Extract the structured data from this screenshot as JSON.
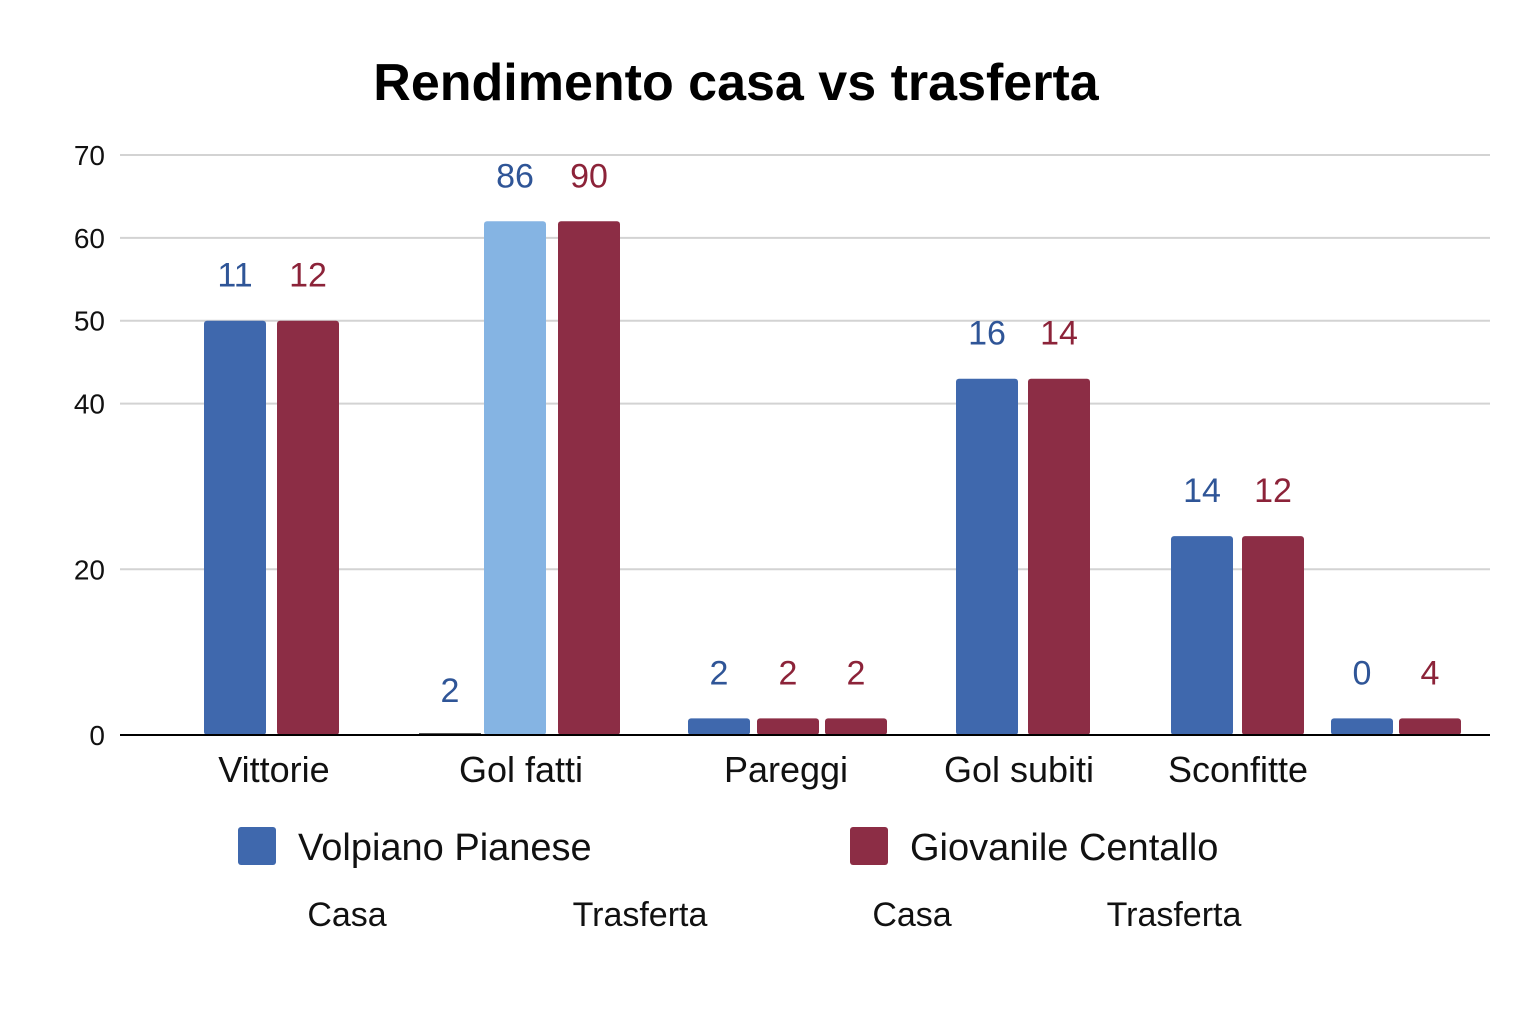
{
  "chart_data": {
    "type": "bar",
    "title": "Rendimento casa vs trasferta",
    "ylim": [
      0,
      70
    ],
    "yticks": [
      0,
      20,
      40,
      50,
      60,
      70
    ],
    "grid": true,
    "colors": {
      "volpiano": "#3f68ad",
      "volpiano_light": "#85b4e3",
      "centallo": "#8c2d45",
      "label_blue": "#2f5597",
      "label_red": "#8c2339"
    },
    "categories": [
      "Vittorie",
      "Gol fatti",
      "Pareggi",
      "Gol subiti",
      "Sconfitte"
    ],
    "bars": [
      {
        "group": 0,
        "series": "volpiano",
        "value": 50,
        "label": "11"
      },
      {
        "group": 0,
        "series": "centallo",
        "value": 50,
        "label": "12"
      },
      {
        "group": 1,
        "series": "volpiano",
        "value": 0,
        "label": "2"
      },
      {
        "group": 1,
        "series": "volpiano_light",
        "value": 62,
        "label": "86",
        "label_color": "label_blue"
      },
      {
        "group": 1,
        "series": "centallo",
        "value": 62,
        "label": "90"
      },
      {
        "group": 2,
        "series": "volpiano",
        "value": 2,
        "label": "2"
      },
      {
        "group": 2,
        "series": "centallo",
        "value": 2,
        "label": "2"
      },
      {
        "group": 2,
        "series": "centallo",
        "value": 2,
        "label": "2"
      },
      {
        "group": 3,
        "series": "volpiano",
        "value": 43,
        "label": "16"
      },
      {
        "group": 3,
        "series": "centallo",
        "value": 43,
        "label": "14"
      },
      {
        "group": 4,
        "series": "volpiano",
        "value": 24,
        "label": "14"
      },
      {
        "group": 4,
        "series": "centallo",
        "value": 24,
        "label": "12"
      },
      {
        "group": 5,
        "series": "volpiano",
        "value": 2,
        "label": "0"
      },
      {
        "group": 5,
        "series": "centallo",
        "value": 2,
        "label": "4"
      }
    ],
    "legend": [
      {
        "name": "Volpiano Pianese",
        "color": "volpiano"
      },
      {
        "name": "Giovanile Centallo",
        "color": "centallo"
      }
    ],
    "sub_legend": [
      "Casa",
      "Trasferta",
      "Casa",
      "Trasferta"
    ]
  }
}
